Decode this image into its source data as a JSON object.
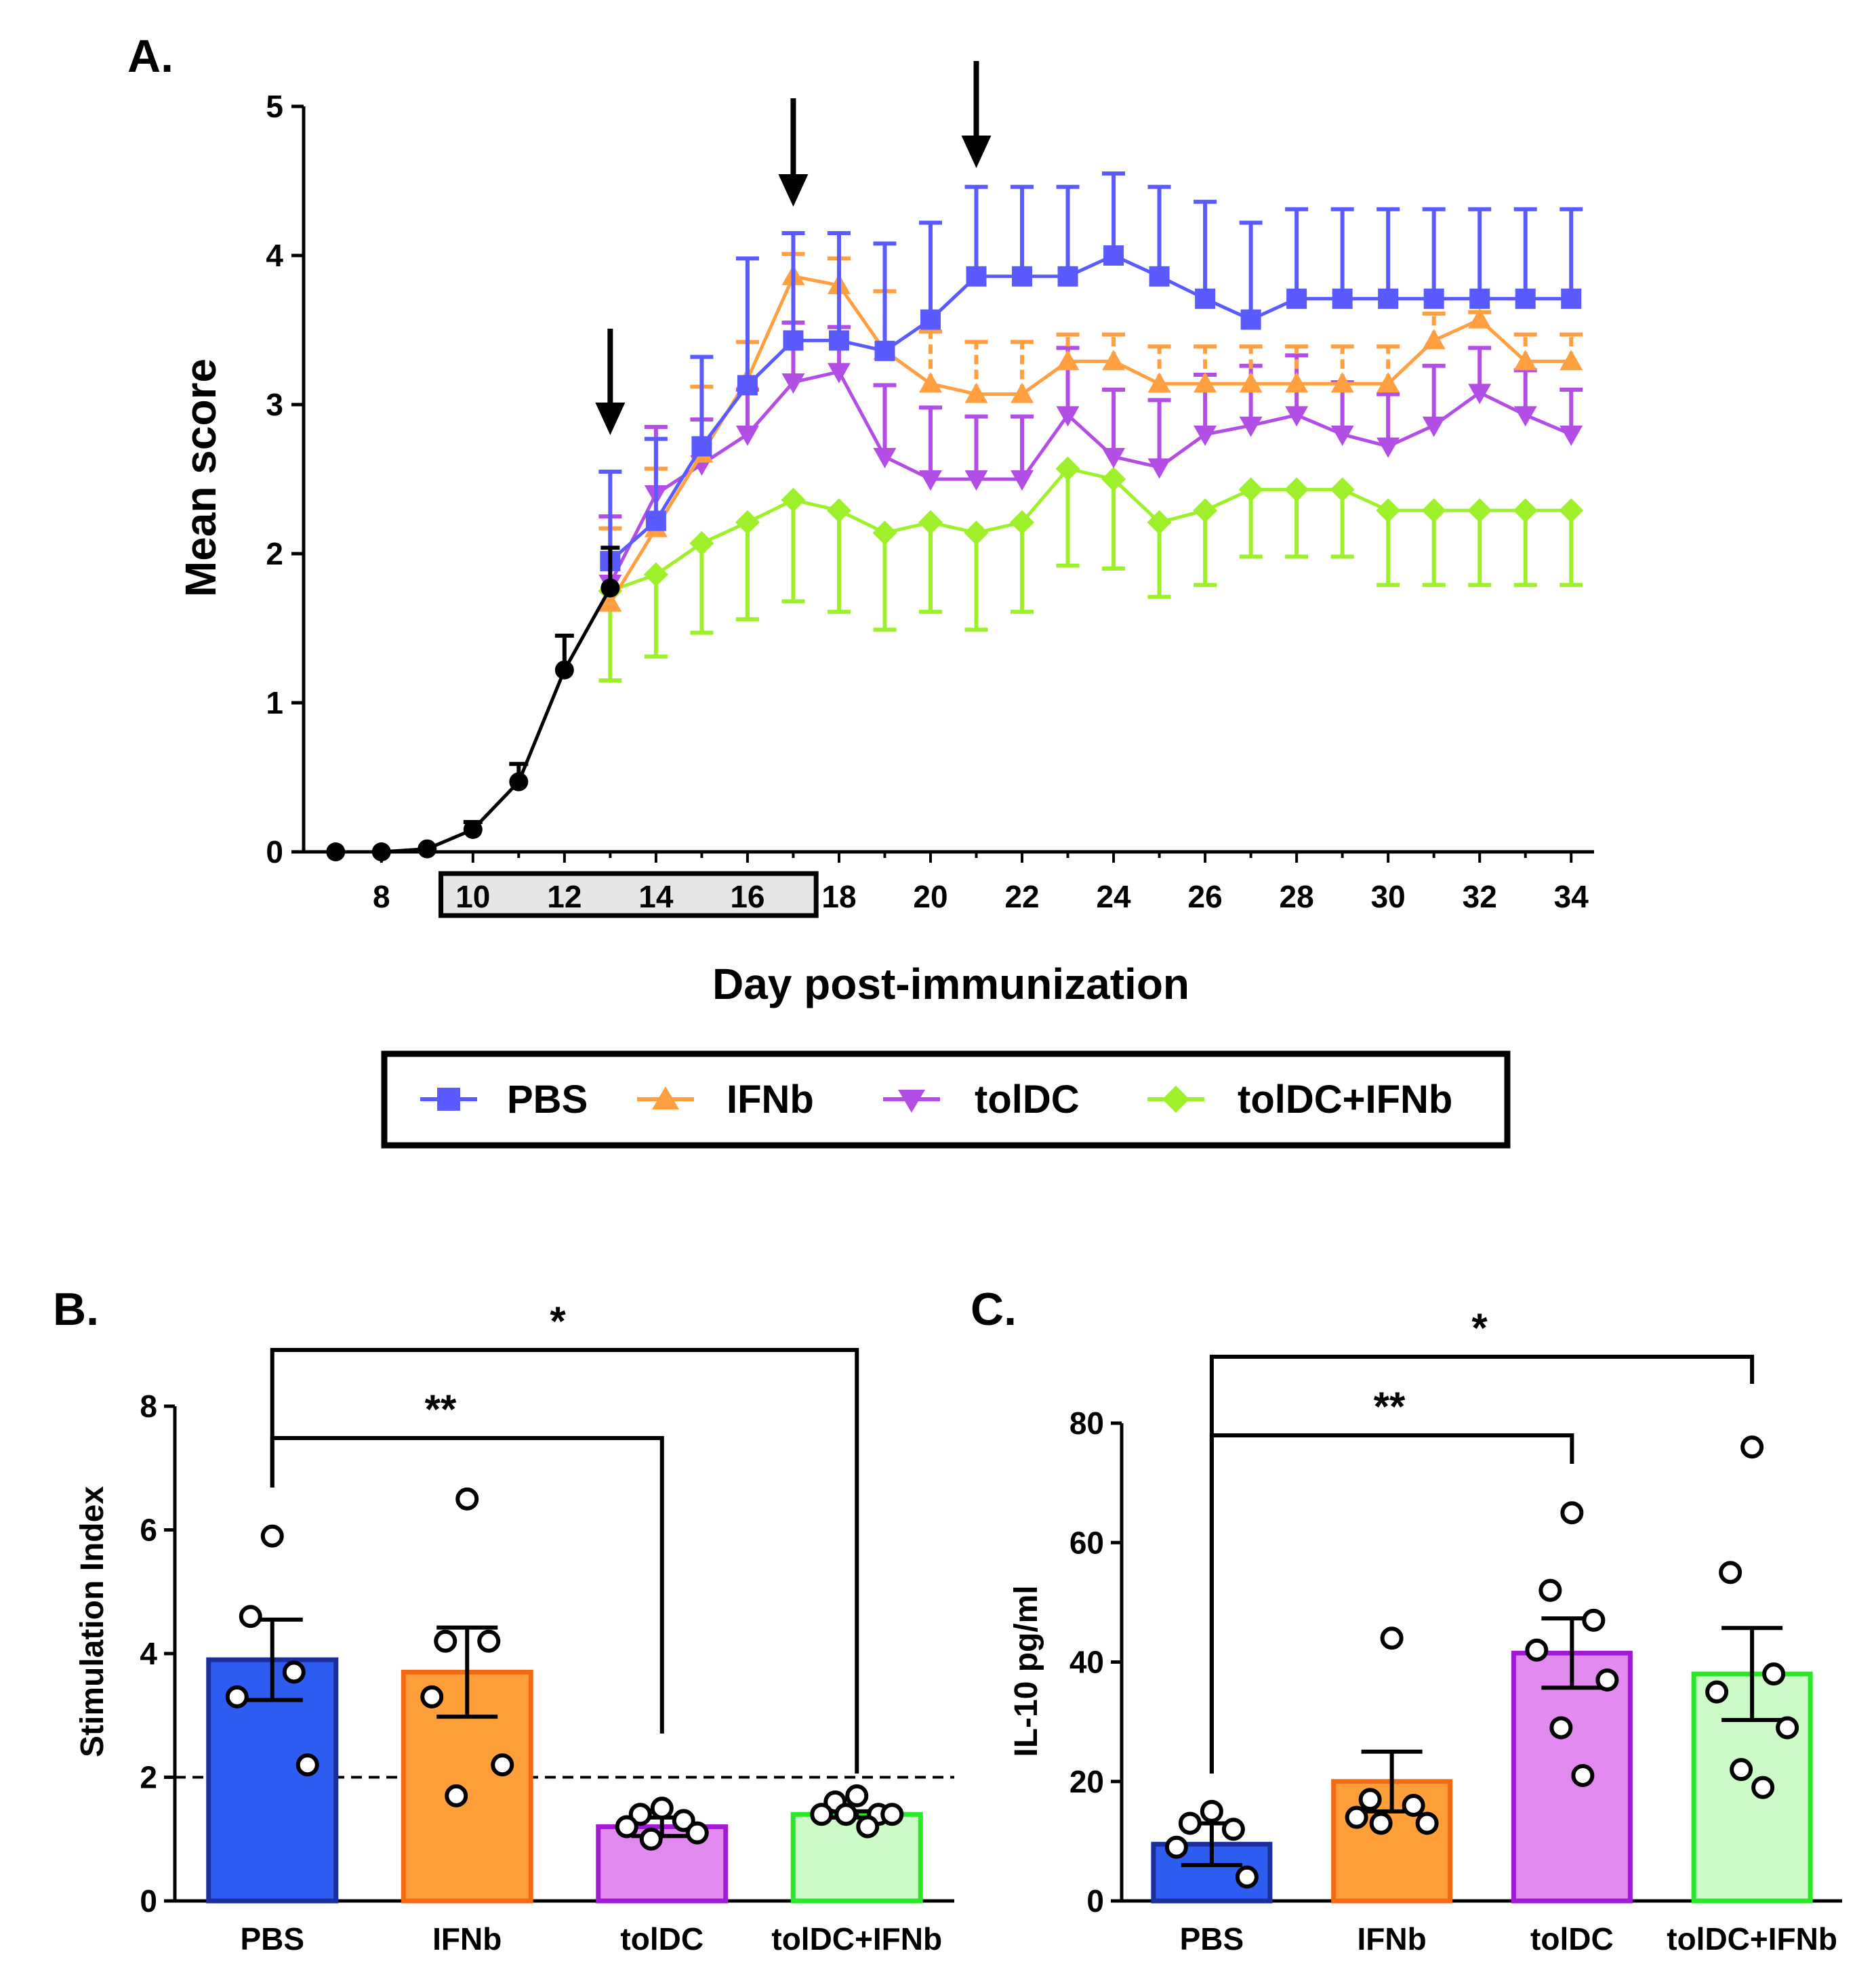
{
  "colors": {
    "pbs": "#5a5aff",
    "ifnb": "#ff9f40",
    "toldc": "#b24ee6",
    "combo": "#9ef02a",
    "baseline": "#000000",
    "bar_pbs_fill": "#2d5cf0",
    "bar_pbs_edge": "#1a2f9c",
    "bar_ifnb_fill": "#ff9f3a",
    "bar_ifnb_edge": "#f26a14",
    "bar_toldc_fill": "#e38af0",
    "bar_toldc_edge": "#a21ad4",
    "bar_combo_fill": "#cdfbc8",
    "bar_combo_edge": "#28e828"
  },
  "chart_data": [
    {
      "panel": "A.",
      "type": "line",
      "xlabel": "Day post-immunization",
      "ylabel": "Mean score",
      "xlim": [
        6.3,
        34.5
      ],
      "ylim": [
        0,
        5
      ],
      "x_ticks": [
        "8",
        "10",
        "12",
        "14",
        "16",
        "18",
        "20",
        "22",
        "24",
        "26",
        "28",
        "30",
        "32",
        "34"
      ],
      "y_ticks": [
        "0",
        "1",
        "2",
        "3",
        "4",
        "5"
      ],
      "treatment_window_days": [
        9.3,
        17.5
      ],
      "treatment_arrows_days": [
        13,
        17,
        21
      ],
      "baseline": {
        "x": [
          7,
          8,
          9,
          10,
          11,
          12,
          13
        ],
        "y": [
          0,
          0,
          0.02,
          0.15,
          0.47,
          1.22,
          1.77
        ],
        "err": [
          0,
          0,
          0,
          0.05,
          0.12,
          0.23,
          0.27
        ]
      },
      "series": [
        {
          "name": "PBS",
          "marker": "square",
          "x": [
            13,
            14,
            15,
            16,
            17,
            18,
            19,
            20,
            21,
            22,
            23,
            24,
            25,
            26,
            27,
            28,
            29,
            30,
            31,
            32,
            33,
            34
          ],
          "y": [
            1.95,
            2.22,
            2.72,
            3.13,
            3.43,
            3.43,
            3.36,
            3.57,
            3.86,
            3.86,
            3.86,
            4.0,
            3.86,
            3.71,
            3.57,
            3.71,
            3.71,
            3.71,
            3.71,
            3.71,
            3.71,
            3.71
          ],
          "err": [
            0.6,
            0.55,
            0.6,
            0.85,
            0.72,
            0.72,
            0.72,
            0.65,
            0.6,
            0.6,
            0.6,
            0.55,
            0.6,
            0.65,
            0.65,
            0.6,
            0.6,
            0.6,
            0.6,
            0.6,
            0.6,
            0.6
          ]
        },
        {
          "name": "IFNb",
          "marker": "triangle-up",
          "x": [
            13,
            14,
            15,
            16,
            17,
            18,
            19,
            20,
            21,
            22,
            23,
            24,
            25,
            26,
            27,
            28,
            29,
            30,
            31,
            32,
            33,
            34
          ],
          "y": [
            1.67,
            2.17,
            2.67,
            3.17,
            3.86,
            3.8,
            3.36,
            3.14,
            3.07,
            3.07,
            3.29,
            3.29,
            3.14,
            3.14,
            3.14,
            3.14,
            3.14,
            3.14,
            3.43,
            3.57,
            3.29,
            3.29
          ],
          "err": [
            0.5,
            0.4,
            0.45,
            0.25,
            0.15,
            0.18,
            0.4,
            0.35,
            0.35,
            0.35,
            0.18,
            0.18,
            0.25,
            0.25,
            0.25,
            0.25,
            0.25,
            0.25,
            0.18,
            0.05,
            0.18,
            0.18
          ]
        },
        {
          "name": "tolDC",
          "marker": "triangle-down",
          "x": [
            13,
            14,
            15,
            16,
            17,
            18,
            19,
            20,
            21,
            22,
            23,
            24,
            25,
            26,
            27,
            28,
            29,
            30,
            31,
            32,
            33,
            34
          ],
          "y": [
            1.8,
            2.4,
            2.6,
            2.8,
            3.15,
            3.22,
            2.65,
            2.5,
            2.5,
            2.5,
            2.93,
            2.65,
            2.58,
            2.8,
            2.86,
            2.93,
            2.8,
            2.72,
            2.86,
            3.08,
            2.93,
            2.8
          ],
          "err": [
            0.45,
            0.45,
            0.3,
            0.3,
            0.4,
            0.3,
            0.48,
            0.48,
            0.42,
            0.42,
            0.45,
            0.45,
            0.45,
            0.4,
            0.4,
            0.4,
            0.35,
            0.35,
            0.4,
            0.3,
            0.3,
            0.3
          ]
        },
        {
          "name": "tolDC+IFNb",
          "marker": "diamond",
          "x": [
            13,
            14,
            15,
            16,
            17,
            18,
            19,
            20,
            21,
            22,
            23,
            24,
            25,
            26,
            27,
            28,
            29,
            30,
            31,
            32,
            33,
            34
          ],
          "y": [
            1.75,
            1.86,
            2.07,
            2.21,
            2.36,
            2.29,
            2.14,
            2.21,
            2.14,
            2.21,
            2.57,
            2.5,
            2.21,
            2.29,
            2.43,
            2.43,
            2.43,
            2.29,
            2.29,
            2.29,
            2.29,
            2.29
          ],
          "err": [
            0.6,
            0.55,
            0.6,
            0.65,
            0.68,
            0.68,
            0.65,
            0.6,
            0.65,
            0.6,
            0.65,
            0.6,
            0.5,
            0.5,
            0.45,
            0.45,
            0.45,
            0.5,
            0.5,
            0.5,
            0.5,
            0.5
          ]
        }
      ],
      "legend": [
        "PBS",
        "IFNb",
        "tolDC",
        "tolDC+IFNb"
      ]
    },
    {
      "panel": "B.",
      "type": "bar",
      "ylabel": "Stimulation Index",
      "ylim": [
        0,
        8
      ],
      "y_ticks": [
        "0",
        "2",
        "4",
        "6",
        "8"
      ],
      "categories": [
        "PBS",
        "IFNb",
        "tolDC",
        "tolDC+IFNb"
      ],
      "values": [
        3.9,
        3.7,
        1.2,
        1.4
      ],
      "sem": [
        0.65,
        0.72,
        0.15,
        0.05
      ],
      "points": [
        [
          5.9,
          4.6,
          3.7,
          3.3,
          2.2
        ],
        [
          6.5,
          4.2,
          4.2,
          3.3,
          2.2,
          1.7
        ],
        [
          1.5,
          1.4,
          1.3,
          1.2,
          1.1,
          1.0
        ],
        [
          1.7,
          1.6,
          1.4,
          1.4,
          1.4,
          1.4,
          1.2
        ]
      ],
      "reference_line": 2,
      "significance": [
        {
          "from": "PBS",
          "to": "tolDC+IFNb",
          "label": "*"
        },
        {
          "from": "PBS",
          "to": "tolDC",
          "label": "**"
        }
      ]
    },
    {
      "panel": "C.",
      "type": "bar",
      "ylabel": "IL-10 pg/ml",
      "ylim": [
        0,
        80
      ],
      "y_ticks": [
        "0",
        "20",
        "40",
        "60",
        "80"
      ],
      "categories": [
        "PBS",
        "IFNb",
        "tolDC",
        "tolDC+IFNb"
      ],
      "values": [
        9.5,
        20,
        41.5,
        38
      ],
      "sem": [
        3.5,
        5.0,
        5.8,
        7.7
      ],
      "points": [
        [
          15,
          13,
          12,
          9,
          4
        ],
        [
          44,
          17,
          16,
          14,
          13,
          13
        ],
        [
          65,
          52,
          47,
          42,
          37,
          29,
          21
        ],
        [
          76,
          55,
          38,
          35,
          29,
          22,
          19
        ]
      ],
      "significance": [
        {
          "from": "PBS",
          "to": "tolDC+IFNb",
          "label": "*"
        },
        {
          "from": "PBS",
          "to": "tolDC",
          "label": "**"
        }
      ]
    }
  ]
}
